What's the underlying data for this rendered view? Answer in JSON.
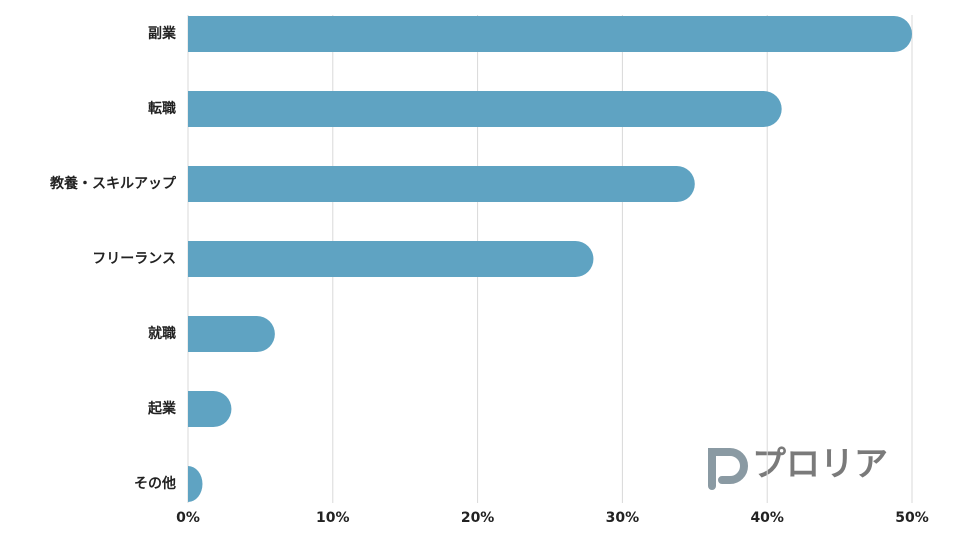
{
  "chart_data": {
    "type": "bar",
    "orientation": "horizontal",
    "categories": [
      "副業",
      "転職",
      "教養・スキルアップ",
      "フリーランス",
      "就職",
      "起業",
      "その他"
    ],
    "values": [
      50,
      41,
      35,
      28,
      6,
      3,
      1
    ],
    "color": "#5fa3c2",
    "xlim": [
      0,
      50
    ],
    "xticks": [
      {
        "value": 0,
        "label": "0%"
      },
      {
        "value": 10,
        "label": "10%"
      },
      {
        "value": 20,
        "label": "20%"
      },
      {
        "value": 30,
        "label": "30%"
      },
      {
        "value": 40,
        "label": "40%"
      },
      {
        "value": 50,
        "label": "50%"
      }
    ],
    "grid": true
  },
  "logo": "プロリア"
}
